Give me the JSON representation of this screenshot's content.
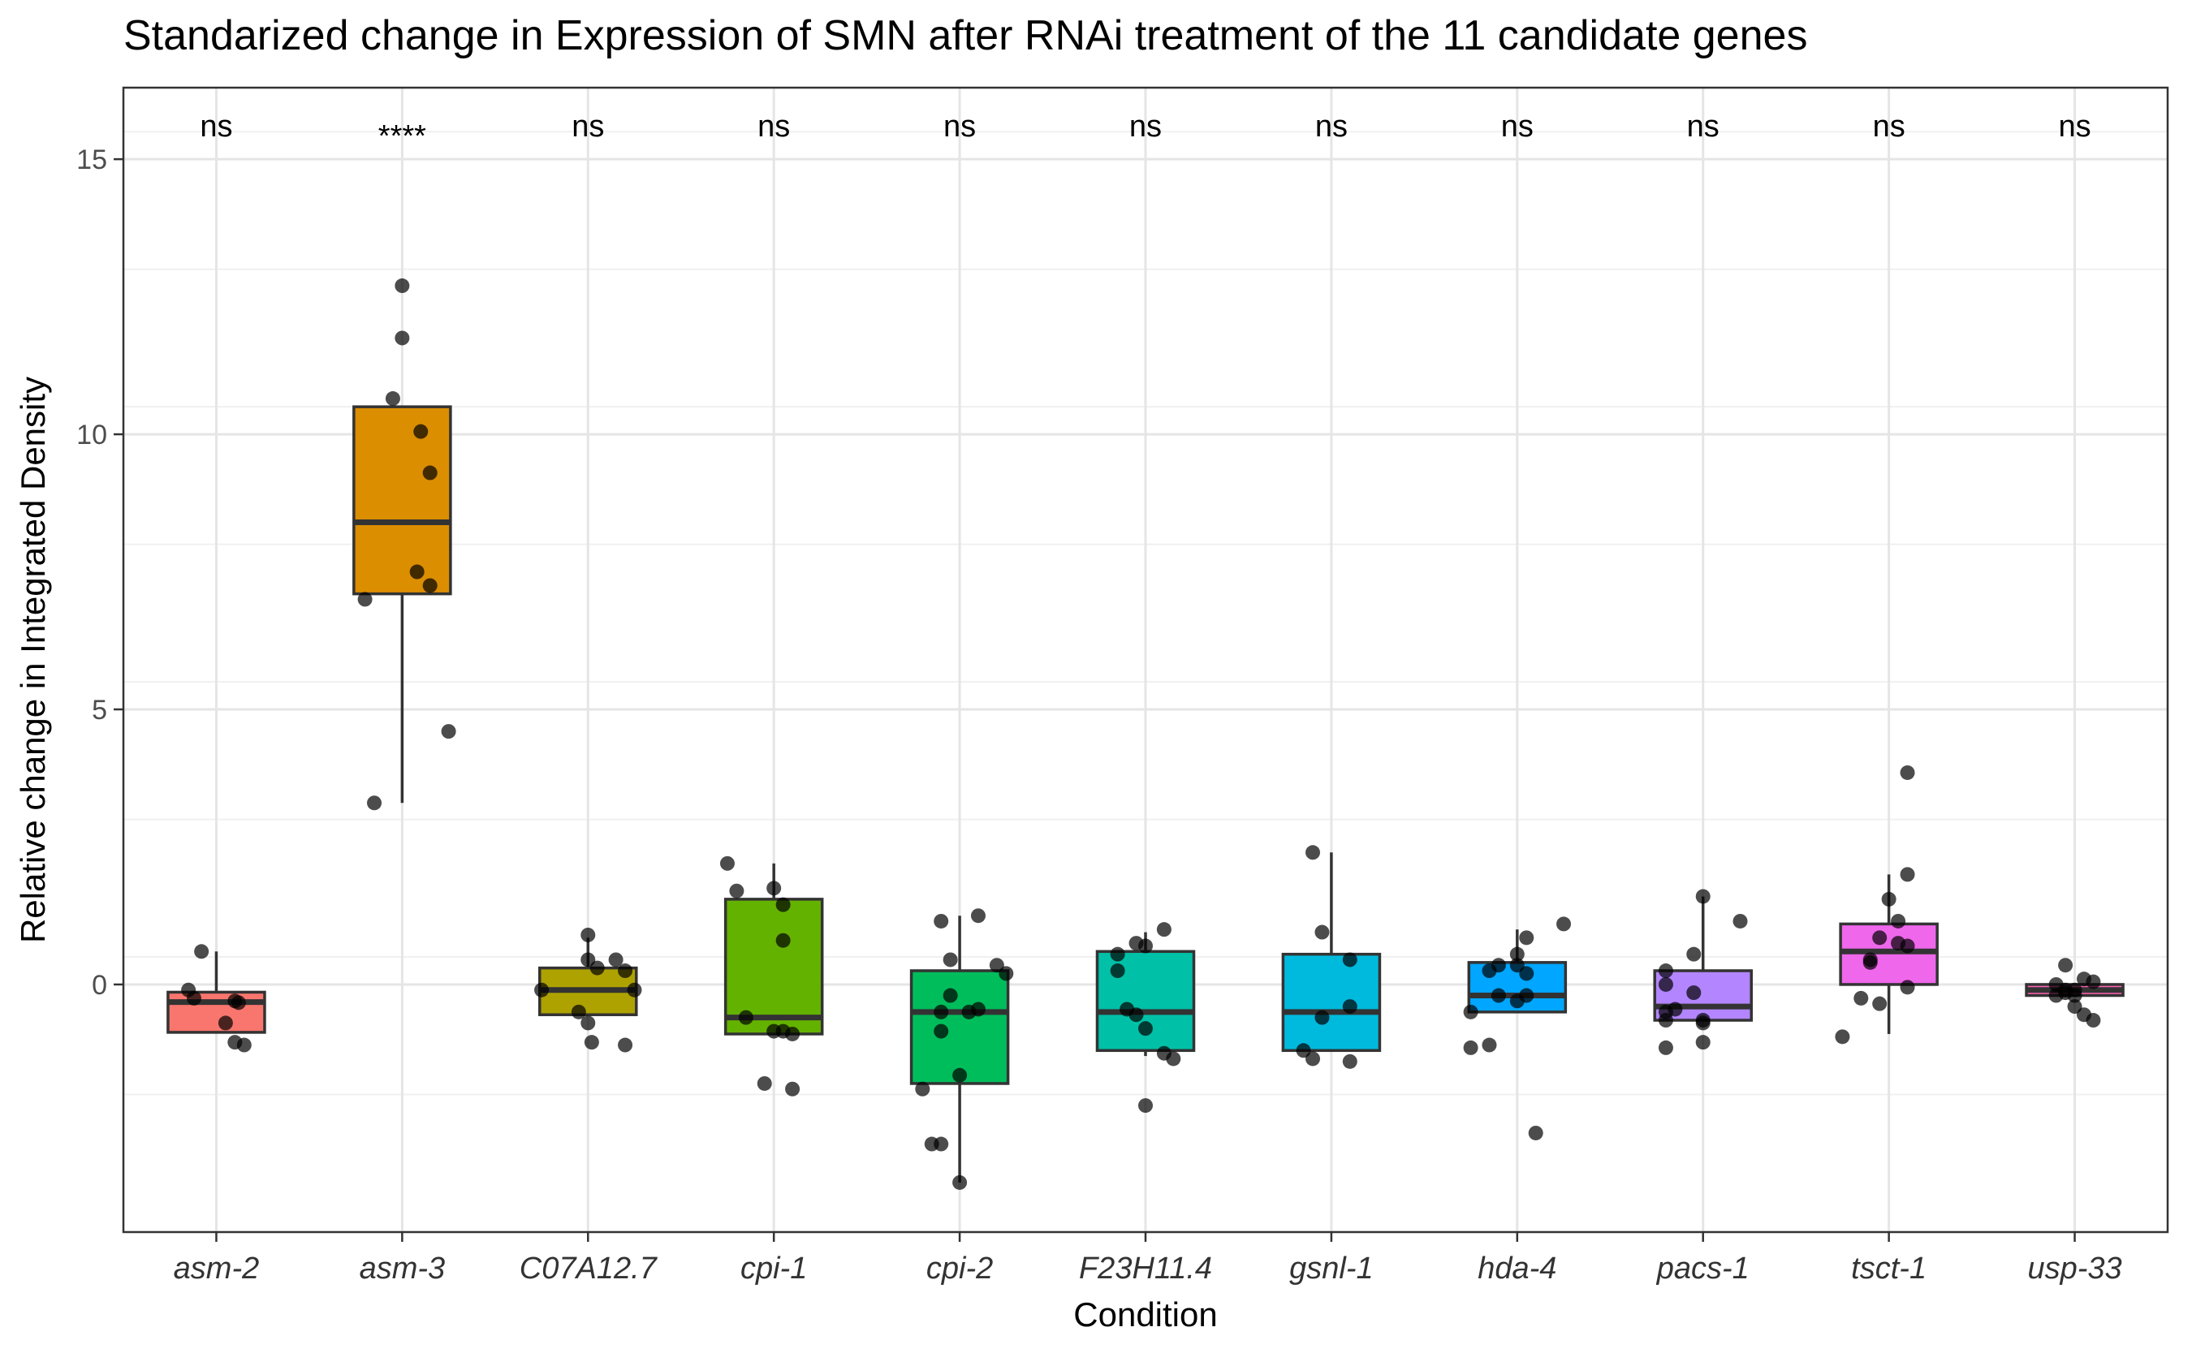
{
  "chart_data": {
    "type": "box",
    "title": "Standarized change in Expression of SMN after RNAi treatment of the 11 candidate genes",
    "xlabel": "Condition",
    "ylabel": "Relative change in Integrated Density",
    "ylim": [
      -4.5,
      16.3
    ],
    "yticks": [
      0,
      5,
      10,
      15
    ],
    "grid": true,
    "legend": "none",
    "categories": [
      "asm-2",
      "asm-3",
      "C07A12.7",
      "cpi-1",
      "cpi-2",
      "F23H11.4",
      "gsnl-1",
      "hda-4",
      "pacs-1",
      "tsct-1",
      "usp-33"
    ],
    "significance": [
      "ns",
      "****",
      "ns",
      "ns",
      "ns",
      "ns",
      "ns",
      "ns",
      "ns",
      "ns",
      "ns"
    ],
    "boxes": [
      {
        "name": "asm-2",
        "color": "#F8766D",
        "q1": -0.87,
        "median": -0.32,
        "q3": -0.14,
        "whisker_low": -0.87,
        "whisker_high": 0.6,
        "points": [
          [
            -0.08,
            0.6
          ],
          [
            -0.15,
            -0.1
          ],
          [
            -0.12,
            -0.25
          ],
          [
            0.1,
            -0.3
          ],
          [
            0.12,
            -0.33
          ],
          [
            0.05,
            -0.7
          ],
          [
            0.1,
            -1.05
          ],
          [
            0.15,
            -1.1
          ]
        ]
      },
      {
        "name": "asm-3",
        "color": "#DB8E00",
        "q1": 7.1,
        "median": 8.4,
        "q3": 10.5,
        "whisker_low": 3.3,
        "whisker_high": 10.5,
        "points": [
          [
            0.0,
            12.7
          ],
          [
            0.0,
            11.75
          ],
          [
            -0.05,
            10.65
          ],
          [
            0.1,
            10.05
          ],
          [
            0.15,
            9.3
          ],
          [
            0.08,
            7.5
          ],
          [
            0.15,
            7.25
          ],
          [
            -0.2,
            7.0
          ],
          [
            0.25,
            4.6
          ],
          [
            -0.15,
            3.3
          ]
        ]
      },
      {
        "name": "C07A12.7",
        "color": "#AEA200",
        "q1": -0.55,
        "median": -0.1,
        "q3": 0.3,
        "whisker_low": -0.55,
        "whisker_high": 0.85,
        "points": [
          [
            0.0,
            0.9
          ],
          [
            0.0,
            0.45
          ],
          [
            0.15,
            0.45
          ],
          [
            0.05,
            0.3
          ],
          [
            0.2,
            0.25
          ],
          [
            -0.25,
            -0.1
          ],
          [
            0.25,
            -0.1
          ],
          [
            -0.05,
            -0.5
          ],
          [
            0.0,
            -0.7
          ],
          [
            0.02,
            -1.05
          ],
          [
            0.2,
            -1.1
          ]
        ]
      },
      {
        "name": "cpi-1",
        "color": "#64B200",
        "q1": -0.9,
        "median": -0.6,
        "q3": 1.55,
        "whisker_low": -0.9,
        "whisker_high": 2.2,
        "points": [
          [
            -0.25,
            2.2
          ],
          [
            0.0,
            1.75
          ],
          [
            -0.2,
            1.7
          ],
          [
            0.05,
            1.45
          ],
          [
            0.05,
            0.8
          ],
          [
            -0.15,
            -0.6
          ],
          [
            0.0,
            -0.85
          ],
          [
            0.05,
            -0.85
          ],
          [
            0.1,
            -0.9
          ],
          [
            -0.05,
            -1.8
          ],
          [
            0.1,
            -1.9
          ]
        ]
      },
      {
        "name": "cpi-2",
        "color": "#00BD5C",
        "q1": -1.8,
        "median": -0.5,
        "q3": 0.25,
        "whisker_low": -3.6,
        "whisker_high": 1.25,
        "points": [
          [
            -0.1,
            1.15
          ],
          [
            0.1,
            1.25
          ],
          [
            -0.05,
            0.45
          ],
          [
            0.2,
            0.35
          ],
          [
            0.25,
            0.2
          ],
          [
            -0.05,
            -0.2
          ],
          [
            -0.1,
            -0.5
          ],
          [
            0.05,
            -0.5
          ],
          [
            0.1,
            -0.45
          ],
          [
            -0.1,
            -0.85
          ],
          [
            0.0,
            -1.65
          ],
          [
            -0.2,
            -1.9
          ],
          [
            -0.15,
            -2.9
          ],
          [
            -0.1,
            -2.9
          ],
          [
            0.0,
            -3.6
          ]
        ]
      },
      {
        "name": "F23H11.4",
        "color": "#00C1A7",
        "q1": -1.2,
        "median": -0.5,
        "q3": 0.6,
        "whisker_low": -1.3,
        "whisker_high": 0.95,
        "points": [
          [
            0.1,
            1.0
          ],
          [
            -0.05,
            0.75
          ],
          [
            0.0,
            0.7
          ],
          [
            -0.15,
            0.55
          ],
          [
            -0.15,
            0.25
          ],
          [
            -0.1,
            -0.45
          ],
          [
            -0.05,
            -0.55
          ],
          [
            0.0,
            -0.8
          ],
          [
            0.1,
            -1.25
          ],
          [
            0.15,
            -1.35
          ],
          [
            0.0,
            -2.2
          ]
        ]
      },
      {
        "name": "gsnl-1",
        "color": "#00BADE",
        "q1": -1.2,
        "median": -0.5,
        "q3": 0.55,
        "whisker_low": -1.2,
        "whisker_high": 2.4,
        "points": [
          [
            -0.1,
            2.4
          ],
          [
            -0.05,
            0.95
          ],
          [
            0.1,
            0.45
          ],
          [
            -0.05,
            -0.6
          ],
          [
            0.1,
            -0.4
          ],
          [
            -0.15,
            -1.2
          ],
          [
            -0.1,
            -1.35
          ],
          [
            0.1,
            -1.4
          ]
        ]
      },
      {
        "name": "hda-4",
        "color": "#00A6FF",
        "q1": -0.5,
        "median": -0.2,
        "q3": 0.4,
        "whisker_low": -0.5,
        "whisker_high": 1.0,
        "points": [
          [
            0.05,
            0.85
          ],
          [
            0.25,
            1.1
          ],
          [
            0.0,
            0.55
          ],
          [
            -0.1,
            0.35
          ],
          [
            0.0,
            0.35
          ],
          [
            -0.15,
            0.25
          ],
          [
            0.05,
            0.2
          ],
          [
            -0.1,
            -0.2
          ],
          [
            0.0,
            -0.3
          ],
          [
            0.05,
            -0.2
          ],
          [
            -0.25,
            -0.5
          ],
          [
            -0.15,
            -1.1
          ],
          [
            -0.25,
            -1.15
          ],
          [
            0.1,
            -2.7
          ]
        ]
      },
      {
        "name": "pacs-1",
        "color": "#B385FF",
        "q1": -0.65,
        "median": -0.4,
        "q3": 0.25,
        "whisker_low": -0.65,
        "whisker_high": 1.6,
        "points": [
          [
            0.0,
            1.6
          ],
          [
            0.2,
            1.15
          ],
          [
            -0.05,
            0.55
          ],
          [
            -0.2,
            0.25
          ],
          [
            -0.2,
            0.0
          ],
          [
            -0.05,
            -0.15
          ],
          [
            -0.15,
            -0.45
          ],
          [
            -0.2,
            -0.5
          ],
          [
            0.0,
            -0.65
          ],
          [
            -0.2,
            -0.65
          ],
          [
            0.0,
            -0.7
          ],
          [
            -0.2,
            -1.15
          ],
          [
            0.0,
            -1.05
          ]
        ]
      },
      {
        "name": "tsct-1",
        "color": "#EF67EB",
        "q1": 0.0,
        "median": 0.6,
        "q3": 1.1,
        "whisker_low": -0.9,
        "whisker_high": 2.0,
        "points": [
          [
            0.1,
            3.85
          ],
          [
            0.1,
            2.0
          ],
          [
            0.0,
            1.55
          ],
          [
            0.05,
            1.15
          ],
          [
            -0.05,
            0.85
          ],
          [
            0.05,
            0.75
          ],
          [
            0.1,
            0.7
          ],
          [
            -0.1,
            0.4
          ],
          [
            -0.1,
            0.45
          ],
          [
            -0.15,
            -0.25
          ],
          [
            -0.05,
            -0.35
          ],
          [
            0.1,
            -0.05
          ],
          [
            -0.25,
            -0.95
          ]
        ]
      },
      {
        "name": "usp-33",
        "color": "#FF63B6",
        "q1": -0.2,
        "median": -0.1,
        "q3": 0.0,
        "whisker_low": -0.2,
        "whisker_high": 0.0,
        "points": [
          [
            -0.05,
            0.35
          ],
          [
            0.05,
            0.1
          ],
          [
            0.1,
            0.05
          ],
          [
            -0.1,
            0.0
          ],
          [
            -0.05,
            -0.1
          ],
          [
            0.0,
            -0.1
          ],
          [
            -0.1,
            -0.2
          ],
          [
            -0.05,
            -0.15
          ],
          [
            0.0,
            -0.4
          ],
          [
            0.05,
            -0.55
          ],
          [
            0.1,
            -0.65
          ],
          [
            0.0,
            -0.2
          ]
        ]
      }
    ]
  }
}
